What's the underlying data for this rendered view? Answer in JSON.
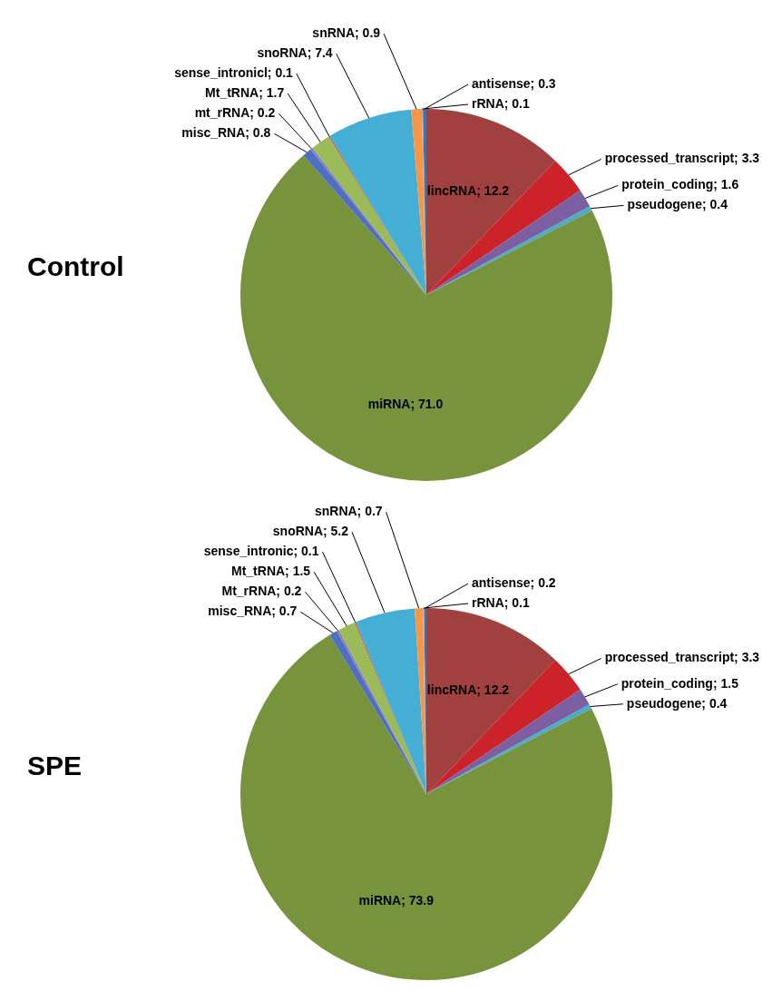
{
  "chart_data": [
    {
      "type": "pie",
      "title": "Control",
      "categories": [
        "lincRNA",
        "processed_transcript",
        "protein_coding",
        "pseudogene",
        "miRNA",
        "misc_RNA",
        "mt_rRNA",
        "Mt_tRNA",
        "sense_intronicl",
        "snoRNA",
        "snRNA",
        "rRNA",
        "antisense"
      ],
      "values": [
        12.2,
        3.3,
        1.6,
        0.4,
        71.0,
        0.8,
        0.2,
        1.7,
        0.1,
        7.4,
        0.9,
        0.1,
        0.3
      ],
      "colors": [
        "#a1413f",
        "#cc2229",
        "#7b5fa0",
        "#4bacc6",
        "#77933c",
        "#4f6fc0",
        "#8a7cc0",
        "#9bbb59",
        "#c0504d",
        "#45aed4",
        "#f79646",
        "#d99694",
        "#2c7bb6"
      ],
      "value_labels": [
        "12.2",
        "3.3",
        "1.6",
        "0.4",
        "71.0",
        "0.8",
        "0.2",
        "1.7",
        "0.1",
        "7.4",
        "0.9",
        "0.1",
        "0.3"
      ]
    },
    {
      "type": "pie",
      "title": "SPE",
      "categories": [
        "lincRNA",
        "processed_transcript",
        "protein_coding",
        "pseudogene",
        "miRNA",
        "misc_RNA",
        "Mt_rRNA",
        "Mt_tRNA",
        "sense_intronic",
        "snoRNA",
        "snRNA",
        "rRNA",
        "antisense"
      ],
      "values": [
        12.2,
        3.3,
        1.5,
        0.4,
        73.9,
        0.7,
        0.2,
        1.5,
        0.1,
        5.2,
        0.7,
        0.1,
        0.2
      ],
      "colors": [
        "#a1413f",
        "#cc2229",
        "#7b5fa0",
        "#4bacc6",
        "#77933c",
        "#4f6fc0",
        "#8a7cc0",
        "#9bbb59",
        "#c0504d",
        "#45aed4",
        "#f79646",
        "#d99694",
        "#2c7bb6"
      ],
      "value_labels": [
        "12.2",
        "3.3",
        "1.5",
        "0.4",
        "73.9",
        "0.7",
        "0.2",
        "1.5",
        "0.1",
        "5.2",
        "0.7",
        "0.1",
        "0.2"
      ]
    }
  ]
}
